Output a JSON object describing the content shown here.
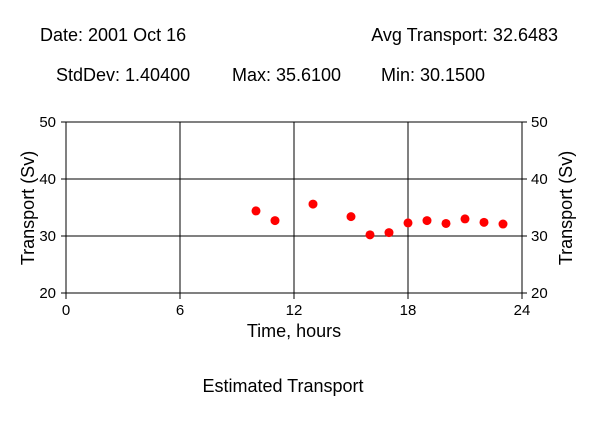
{
  "header": {
    "date": "Date: 2001 Oct 16",
    "avg": "Avg Transport: 32.6483",
    "stddev": "StdDev: 1.40400",
    "max": "Max: 35.6100",
    "min": "Min: 30.1500"
  },
  "chart_data": {
    "type": "scatter",
    "title": "Estimated Transport",
    "xlabel": "Time, hours",
    "ylabel": "Transport (Sv)",
    "ylabel_right": "Transport (Sv)",
    "xlim": [
      0,
      24
    ],
    "ylim": [
      20,
      50
    ],
    "xticks": [
      0,
      6,
      12,
      18,
      24
    ],
    "yticks": [
      20,
      30,
      40,
      50
    ],
    "grid": true,
    "marker_color": "#ff0000",
    "series": [
      {
        "x": [
          10,
          11,
          13,
          15,
          16,
          17,
          18,
          19,
          20,
          21,
          22,
          23
        ],
        "y": [
          34.4,
          32.7,
          35.6,
          33.4,
          30.2,
          30.6,
          32.3,
          32.7,
          32.2,
          33.0,
          32.4,
          32.1
        ]
      }
    ]
  }
}
